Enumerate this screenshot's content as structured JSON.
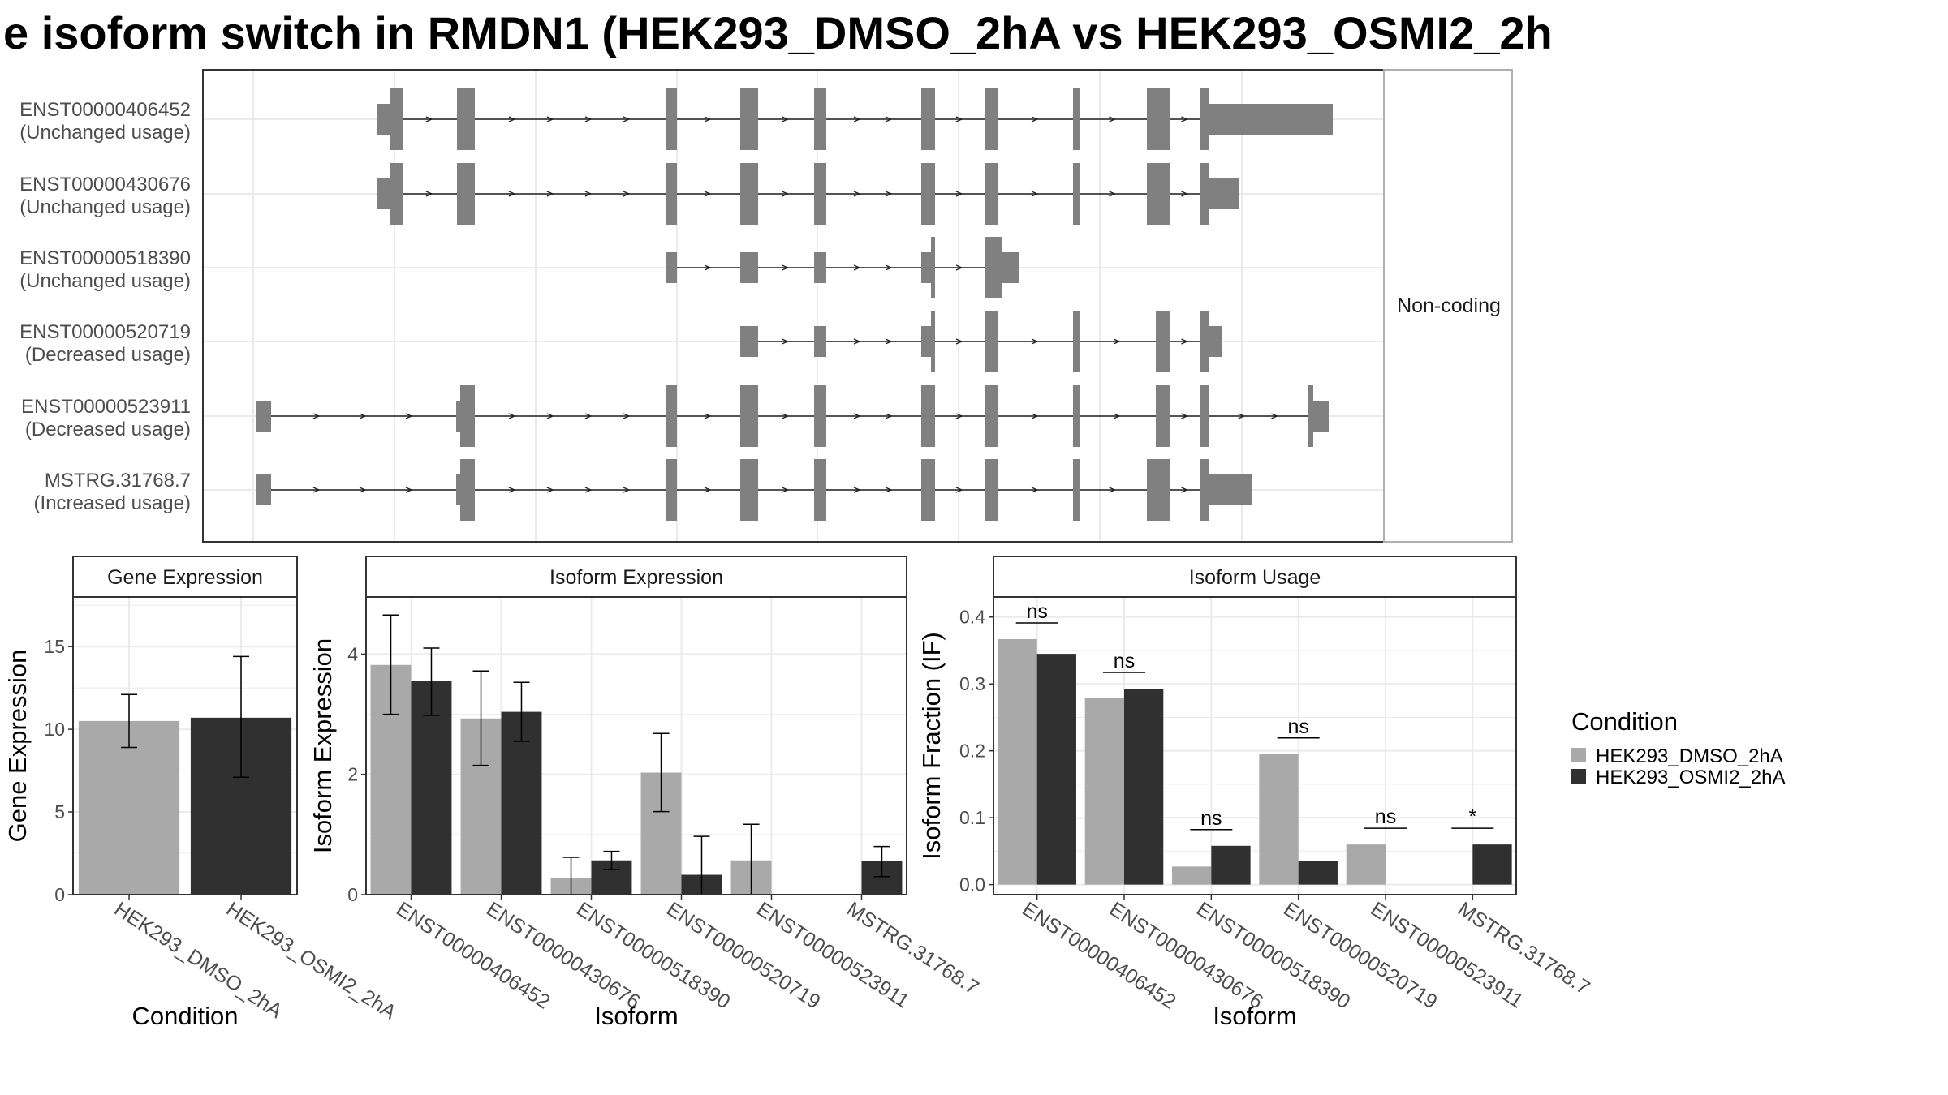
{
  "title": "e isoform switch in RMDN1 (HEK293_DMSO_2hA vs HEK293_OSMI2_2h",
  "colors": {
    "dmso": "#a9a9a9",
    "osmi": "#303030",
    "exon": "#808080",
    "grid": "#ebebeb",
    "border": "#333333",
    "strip_bg": "#ffffff",
    "strip_border": "#333333"
  },
  "structure": {
    "facet_label": "Non-coding",
    "isoforms": [
      {
        "id": "ENST00000406452",
        "usage": "(Unchanged usage)"
      },
      {
        "id": "ENST00000430676",
        "usage": "(Unchanged usage)"
      },
      {
        "id": "ENST00000518390",
        "usage": "(Unchanged usage)"
      },
      {
        "id": "ENST00000520719",
        "usage": "(Decreased usage)"
      },
      {
        "id": "ENST00000523911",
        "usage": "(Decreased usage)"
      },
      {
        "id": "MSTRG.31768.7",
        "usage": "(Increased usage)"
      }
    ]
  },
  "legend": {
    "title": "Condition",
    "items": [
      "HEK293_DMSO_2hA",
      "HEK293_OSMI2_2hA"
    ]
  },
  "chart_data": [
    {
      "type": "bar",
      "panel": "Gene Expression",
      "categories": [
        "HEK293_DMSO_2hA",
        "HEK293_OSMI2_2hA"
      ],
      "values": [
        10.5,
        10.7
      ],
      "errors": [
        [
          8.9,
          12.1
        ],
        [
          7.1,
          14.4
        ]
      ],
      "xlabel": "Condition",
      "ylabel": "Gene Expression",
      "ylim": [
        0,
        18
      ],
      "yticks": [
        0,
        5,
        10,
        15
      ]
    },
    {
      "type": "bar",
      "panel": "Isoform Expression",
      "categories": [
        "ENST00000406452",
        "ENST00000430676",
        "ENST00000518390",
        "ENST00000520719",
        "ENST00000523911",
        "MSTRG.31768.7"
      ],
      "series": [
        {
          "name": "HEK293_DMSO_2hA",
          "values": [
            3.82,
            2.93,
            0.27,
            2.03,
            0.57,
            0.0
          ],
          "errors": [
            [
              3.0,
              4.65
            ],
            [
              2.15,
              3.72
            ],
            [
              0.0,
              0.62
            ],
            [
              1.38,
              2.68
            ],
            [
              0.0,
              1.17
            ],
            [
              0.0,
              0.0
            ]
          ]
        },
        {
          "name": "HEK293_OSMI2_2hA",
          "values": [
            3.55,
            3.04,
            0.57,
            0.33,
            0.0,
            0.56
          ],
          "errors": [
            [
              2.98,
              4.1
            ],
            [
              2.55,
              3.53
            ],
            [
              0.42,
              0.72
            ],
            [
              0.0,
              0.97
            ],
            [
              0.0,
              0.0
            ],
            [
              0.3,
              0.8
            ]
          ]
        }
      ],
      "xlabel": "Isoform",
      "ylabel": "Isoform Expression",
      "ylim": [
        0,
        4.95
      ],
      "yticks": [
        0,
        2,
        4
      ]
    },
    {
      "type": "bar",
      "panel": "Isoform Usage",
      "categories": [
        "ENST00000406452",
        "ENST00000430676",
        "ENST00000518390",
        "ENST00000520719",
        "ENST00000523911",
        "MSTRG.31768.7"
      ],
      "series": [
        {
          "name": "HEK293_DMSO_2hA",
          "values": [
            0.367,
            0.279,
            0.027,
            0.195,
            0.06,
            0.0
          ]
        },
        {
          "name": "HEK293_OSMI2_2hA",
          "values": [
            0.345,
            0.293,
            0.058,
            0.035,
            0.0,
            0.06
          ]
        }
      ],
      "significance": [
        "ns",
        "ns",
        "ns",
        "ns",
        "ns",
        "*"
      ],
      "xlabel": "Isoform",
      "ylabel": "Isoform Fraction (IF)",
      "ylim": [
        -0.015,
        0.43
      ],
      "yticks": [
        0.0,
        0.1,
        0.2,
        0.3,
        0.4
      ]
    }
  ]
}
